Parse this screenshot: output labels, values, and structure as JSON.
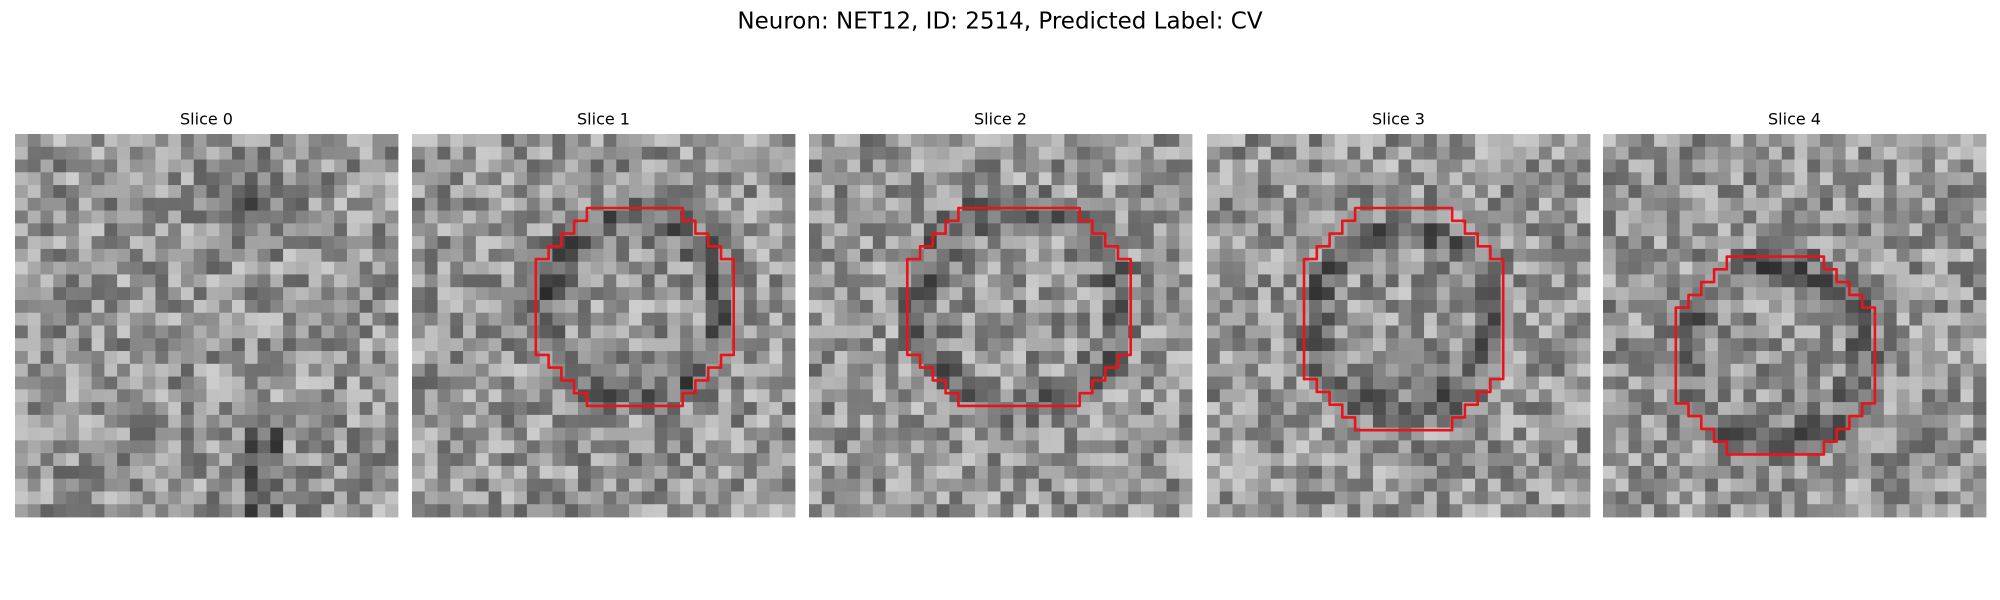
{
  "title": "Neuron: NET12, ID: 2514, Predicted Label: CV",
  "panels": [
    {
      "title": "Slice 0"
    },
    {
      "title": "Slice 1"
    },
    {
      "title": "Slice 2"
    },
    {
      "title": "Slice 3"
    },
    {
      "title": "Slice 4"
    }
  ]
}
